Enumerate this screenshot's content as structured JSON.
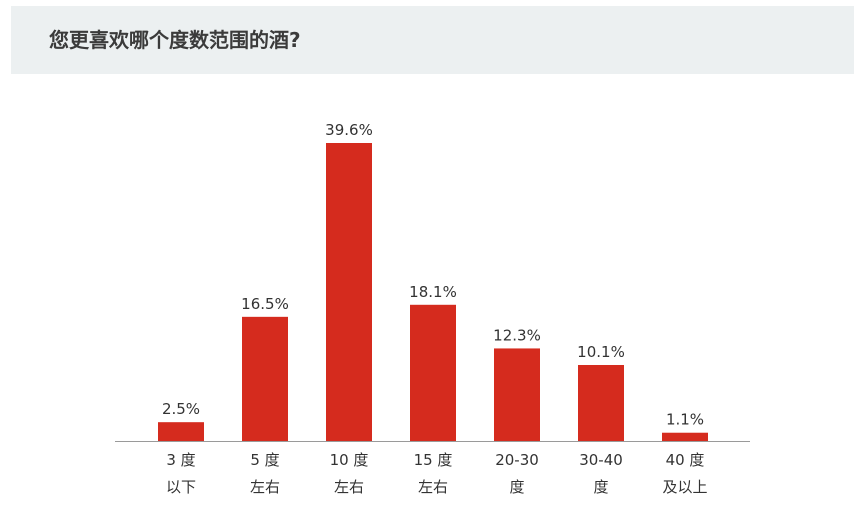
{
  "header": {
    "title": "您更喜欢哪个度数范围的酒?"
  },
  "colors": {
    "bar": "#d52b1e",
    "header_bg": "#ecf0f1",
    "title_text": "#3b3b3b",
    "axis": "#9a9a9a",
    "label_text": "#333333"
  },
  "chart_data": {
    "type": "bar",
    "title": "您更喜欢哪个度数范围的酒?",
    "xlabel": "",
    "ylabel": "",
    "grid": false,
    "legend": "none",
    "unit": "%",
    "ylim": [
      0,
      40
    ],
    "categories": [
      [
        "3 度",
        "以下"
      ],
      [
        "5 度",
        "左右"
      ],
      [
        "10 度",
        "左右"
      ],
      [
        "15 度",
        "左右"
      ],
      [
        "20-30",
        "度"
      ],
      [
        "30-40",
        "度"
      ],
      [
        "40 度",
        "及以上"
      ]
    ],
    "values": [
      2.5,
      16.5,
      39.6,
      18.1,
      12.3,
      10.1,
      1.1
    ],
    "data_labels": [
      "2.5%",
      "16.5%",
      "39.6%",
      "18.1%",
      "12.3%",
      "10.1%",
      "1.1%"
    ]
  }
}
